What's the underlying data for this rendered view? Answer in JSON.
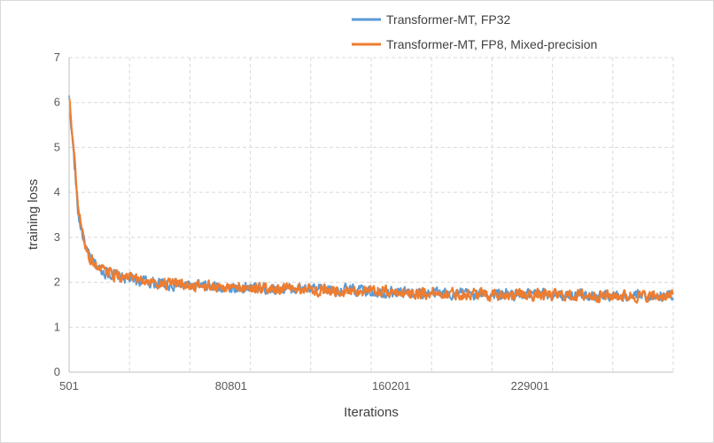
{
  "chart_data": {
    "type": "line",
    "title": "",
    "xlabel": "Iterations",
    "ylabel": "training loss",
    "xlim": [
      501,
      300000
    ],
    "ylim": [
      0,
      7
    ],
    "y_ticks": [
      0,
      1,
      2,
      3,
      4,
      5,
      6,
      7
    ],
    "x_tick_labels": [
      "501",
      "80801",
      "160201",
      "229001"
    ],
    "x_tick_values": [
      501,
      80801,
      160201,
      229001
    ],
    "grid": "dashed, both axes",
    "legend": "top-right",
    "series": [
      {
        "name": "Transformer-MT, FP32",
        "color": "#5b9bd5",
        "x": [
          501,
          2500,
          5000,
          7500,
          10000,
          15000,
          20000,
          30000,
          40000,
          50000,
          60000,
          70000,
          80801,
          100000,
          120000,
          140000,
          160201,
          180000,
          200000,
          229001,
          250000,
          270000,
          290000,
          300000
        ],
        "y": [
          6.1,
          5.0,
          3.5,
          3.0,
          2.6,
          2.3,
          2.2,
          2.08,
          2.0,
          1.95,
          1.92,
          1.9,
          1.88,
          1.86,
          1.84,
          1.82,
          1.78,
          1.76,
          1.74,
          1.72,
          1.72,
          1.7,
          1.7,
          1.72
        ]
      },
      {
        "name": "Transformer-MT, FP8, Mixed-precision",
        "color": "#ed7d31",
        "x": [
          501,
          2500,
          5000,
          7500,
          10000,
          15000,
          20000,
          30000,
          40000,
          50000,
          60000,
          70000,
          80801,
          100000,
          120000,
          140000,
          160201,
          180000,
          200000,
          229001,
          250000,
          270000,
          290000,
          300000
        ],
        "y": [
          6.1,
          5.1,
          3.6,
          3.0,
          2.6,
          2.3,
          2.2,
          2.08,
          2.0,
          1.96,
          1.93,
          1.9,
          1.88,
          1.86,
          1.84,
          1.82,
          1.78,
          1.76,
          1.74,
          1.72,
          1.71,
          1.7,
          1.69,
          1.7
        ]
      }
    ]
  }
}
